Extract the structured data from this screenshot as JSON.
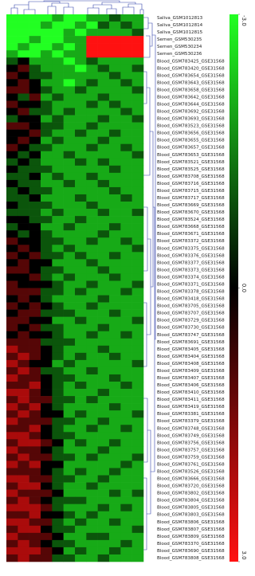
{
  "chart_data": {
    "type": "heatmap",
    "colors": [
      "#22ff22",
      "#000000",
      "#ff1111"
    ],
    "clim": [
      -3,
      3
    ],
    "cticks": [
      {
        "value": -3,
        "label": "-3.0"
      },
      {
        "value": 0,
        "label": "0.0"
      },
      {
        "value": 3,
        "label": "3.0"
      }
    ],
    "rows": [
      "Saliva_GSM1012813",
      "Saliva_GSM1012814",
      "Saliva_GSM1012815",
      "Semen_GSM530235",
      "Semen_GSM530234",
      "Semen_GSM530236",
      "Blood_GSM783425_GSE31568",
      "Blood_GSM783420_GSE31568",
      "Blood_GSM783654_GSE31568",
      "Blood_GSM783643_GSE31568",
      "Blood_GSM783658_GSE31568",
      "Blood_GSM783642_GSE31568",
      "Blood_GSM783644_GSE31568",
      "Blood_GSM783692_GSE31568",
      "Blood_GSM783693_GSE31568",
      "Blood_GSM783523_GSE31568",
      "Blood_GSM783656_GSE31568",
      "Blood_GSM783655_GSE31568",
      "Blood_GSM783657_GSE31568",
      "Blood_GSM783653_GSE31568",
      "Blood_GSM783521_GSE31568",
      "Blood_GSM783525_GSE31568",
      "Blood_GSM783708_GSE31568",
      "Blood_GSM783716_GSE31568",
      "Blood_GSM783715_GSE31568",
      "Blood_GSM783717_GSE31568",
      "Blood_GSM783669_GSE31568",
      "Blood_GSM783670_GSE31568",
      "Blood_GSM783524_GSE31568",
      "Blood_GSM783668_GSE31568",
      "Blood_GSM783671_GSE31568",
      "Blood_GSM783372_GSE31568",
      "Blood_GSM783375_GSE31568",
      "Blood_GSM783376_GSE31568",
      "Blood_GSM783377_GSE31568",
      "Blood_GSM783373_GSE31568",
      "Blood_GSM783374_GSE31568",
      "Blood_GSM783371_GSE31568",
      "Blood_GSM783378_GSE31568",
      "Blood_GSM783418_GSE31568",
      "Blood_GSM783705_GSE31568",
      "Blood_GSM783707_GSE31568",
      "Blood_GSM783729_GSE31568",
      "Blood_GSM783730_GSE31568",
      "Blood_GSM783747_GSE31568",
      "Blood_GSM783691_GSE31568",
      "Blood_GSM783405_GSE31568",
      "Blood_GSM783404_GSE31568",
      "Blood_GSM783408_GSE31568",
      "Blood_GSM783409_GSE31568",
      "Blood_GSM783407_GSE31568",
      "Blood_GSM783406_GSE31568",
      "Blood_GSM783410_GSE31568",
      "Blood_GSM783411_GSE31568",
      "Blood_GSM783419_GSE31568",
      "Blood_GSM783381_GSE31568",
      "Blood_GSM783379_GSE31568",
      "Blood_GSM783748_GSE31568",
      "Blood_GSM783749_GSE31568",
      "Blood_GSM783756_GSE31568",
      "Blood_GSM783757_GSE31568",
      "Blood_GSM783759_GSE31568",
      "Blood_GSM783761_GSE31568",
      "Blood_GSM783526_GSE31568",
      "Blood_GSM783666_GSE31568",
      "Blood_GSM783720_GSE31568",
      "Blood_GSM783802_GSE31568",
      "Blood_GSM783804_GSE31568",
      "Blood_GSM783805_GSE31568",
      "Blood_GSM783803_GSE31568",
      "Blood_GSM783806_GSE31568",
      "Blood_GSM783807_GSE31568",
      "Blood_GSM783809_GSE31568",
      "Blood_GSM783370_GSE31568",
      "Blood_GSM783690_GSE31568",
      "Blood_GSM783808_GSE31568"
    ],
    "values": [
      [
        -3,
        -3,
        -3,
        -3,
        -2,
        -3,
        -3,
        -2,
        -2,
        -1,
        -2,
        -2
      ],
      [
        -3,
        -3,
        -3,
        -2,
        -3,
        -3,
        -2,
        -3,
        -1,
        -2,
        -1,
        -2
      ],
      [
        -3,
        -3,
        -3,
        -3,
        -3,
        -2,
        -3,
        -2,
        -2,
        -2,
        -2,
        -1
      ],
      [
        -3,
        -3,
        -2,
        -3,
        -3,
        -2,
        -2,
        3,
        3,
        3,
        3,
        3
      ],
      [
        -3,
        -2,
        -3,
        -3,
        -2,
        -3,
        -2,
        3,
        3,
        3,
        3,
        3
      ],
      [
        -2,
        -3,
        -3,
        -2,
        -3,
        -2,
        -2,
        3,
        3,
        3,
        3,
        3
      ],
      [
        -1,
        0,
        -2,
        -2,
        -2,
        -3,
        -2,
        -1,
        -2,
        -2,
        -2,
        -2
      ],
      [
        0,
        1,
        -1,
        -2,
        -2,
        -2,
        -3,
        -2,
        -1,
        -2,
        -2,
        -1
      ],
      [
        1,
        0,
        -1,
        -1,
        -2,
        -2,
        -2,
        -2,
        -2,
        -1,
        -2,
        -2
      ],
      [
        0,
        1,
        0,
        -2,
        -2,
        -3,
        -2,
        -1,
        -2,
        -2,
        -1,
        -2
      ],
      [
        1,
        1,
        0,
        -1,
        -2,
        -2,
        -1,
        -2,
        -2,
        -2,
        -2,
        -1
      ],
      [
        0,
        -1,
        1,
        -2,
        -1,
        -2,
        -2,
        -2,
        -1,
        -2,
        -2,
        -2
      ],
      [
        1,
        0,
        0,
        -1,
        -2,
        -2,
        -2,
        -1,
        -2,
        -1,
        -2,
        -2
      ],
      [
        0,
        1,
        -1,
        -1,
        -2,
        -1,
        -2,
        -2,
        -2,
        -2,
        -1,
        -2
      ],
      [
        -1,
        0,
        0,
        -2,
        -1,
        -2,
        -2,
        -2,
        -1,
        -2,
        -2,
        -1
      ],
      [
        1,
        1,
        0,
        -1,
        -1,
        -2,
        -2,
        -1,
        -2,
        -2,
        -2,
        -2
      ],
      [
        0,
        0,
        1,
        -1,
        -2,
        -2,
        -1,
        -2,
        -2,
        -1,
        -2,
        -2
      ],
      [
        0,
        1,
        0,
        -2,
        -1,
        -2,
        -2,
        -2,
        -1,
        -2,
        -2,
        -2
      ],
      [
        1,
        0,
        -1,
        -1,
        -2,
        -2,
        -2,
        -1,
        -2,
        -2,
        -1,
        -2
      ],
      [
        0,
        -1,
        0,
        -2,
        -2,
        -1,
        -2,
        -2,
        -2,
        -2,
        -2,
        -1
      ],
      [
        -1,
        0,
        -1,
        -2,
        -2,
        -2,
        -1,
        -2,
        -1,
        -2,
        -2,
        -2
      ],
      [
        0,
        -1,
        -1,
        -1,
        -2,
        -2,
        -2,
        -2,
        -2,
        -1,
        -2,
        -2
      ],
      [
        -1,
        -1,
        0,
        -2,
        -1,
        -2,
        -2,
        -1,
        -2,
        -2,
        -2,
        -2
      ],
      [
        0,
        -1,
        -1,
        -2,
        -2,
        -1,
        -2,
        -2,
        -1,
        -2,
        -2,
        -2
      ],
      [
        -1,
        0,
        -1,
        -1,
        -2,
        -2,
        -2,
        -2,
        -2,
        -1,
        -2,
        -2
      ],
      [
        -1,
        -1,
        0,
        -2,
        -2,
        -2,
        -1,
        -2,
        -2,
        -2,
        -1,
        -2
      ],
      [
        0,
        -1,
        -1,
        -1,
        -2,
        -2,
        -2,
        -1,
        -2,
        -2,
        -2,
        -2
      ],
      [
        -1,
        -1,
        -1,
        -2,
        -1,
        -2,
        -2,
        -2,
        -1,
        -2,
        -2,
        -1
      ],
      [
        0,
        0,
        -1,
        -1,
        -2,
        -2,
        -1,
        -2,
        -2,
        -2,
        -2,
        -2
      ],
      [
        -1,
        0,
        0,
        -2,
        -2,
        -1,
        -2,
        -2,
        -2,
        -1,
        -2,
        -2
      ],
      [
        0,
        -1,
        0,
        -1,
        -2,
        -2,
        -2,
        -2,
        -1,
        -2,
        -2,
        -2
      ],
      [
        1,
        0,
        0,
        -1,
        -1,
        -2,
        -2,
        -1,
        -2,
        -2,
        -1,
        -2
      ],
      [
        0,
        1,
        0,
        -1,
        -2,
        -1,
        -2,
        -2,
        -2,
        -2,
        -2,
        -1
      ],
      [
        1,
        0,
        1,
        -1,
        -1,
        -2,
        -1,
        -2,
        -2,
        -1,
        -2,
        -2
      ],
      [
        0,
        1,
        0,
        0,
        -2,
        -2,
        -2,
        -1,
        -2,
        -2,
        -2,
        -2
      ],
      [
        1,
        1,
        0,
        -1,
        -1,
        -2,
        -2,
        -2,
        -1,
        -2,
        -2,
        -2
      ],
      [
        0,
        0,
        1,
        -1,
        -2,
        -1,
        -2,
        -2,
        -2,
        -1,
        -2,
        -2
      ],
      [
        1,
        0,
        0,
        0,
        -1,
        -2,
        -2,
        -1,
        -2,
        -2,
        -2,
        -1
      ],
      [
        1,
        1,
        1,
        -1,
        -1,
        -2,
        -1,
        -2,
        -2,
        -2,
        -1,
        -2
      ],
      [
        0,
        1,
        0,
        -1,
        -2,
        -2,
        -2,
        -2,
        -1,
        -2,
        -2,
        -2
      ],
      [
        1,
        0,
        1,
        0,
        -1,
        -2,
        -2,
        -1,
        -2,
        -2,
        -2,
        -2
      ],
      [
        0,
        1,
        1,
        -1,
        -1,
        -1,
        -2,
        -2,
        -2,
        -1,
        -2,
        -2
      ],
      [
        1,
        1,
        0,
        0,
        -2,
        -2,
        -1,
        -2,
        -2,
        -2,
        -2,
        -1
      ],
      [
        1,
        0,
        1,
        -1,
        -1,
        -2,
        -2,
        -2,
        -1,
        -2,
        -2,
        -2
      ],
      [
        0,
        1,
        0,
        0,
        -1,
        -2,
        -2,
        -1,
        -2,
        -2,
        -1,
        -2
      ],
      [
        1,
        1,
        1,
        -1,
        -1,
        -1,
        -2,
        -2,
        -2,
        -2,
        -2,
        -2
      ],
      [
        2,
        1,
        1,
        0,
        -1,
        -2,
        -2,
        -2,
        -1,
        -2,
        -2,
        -2
      ],
      [
        1,
        2,
        1,
        0,
        -1,
        -2,
        -1,
        -2,
        -2,
        -1,
        -2,
        -2
      ],
      [
        2,
        1,
        0,
        0,
        -2,
        -1,
        -2,
        -2,
        -2,
        -2,
        -2,
        -1
      ],
      [
        1,
        2,
        1,
        -1,
        -1,
        -2,
        -2,
        -1,
        -2,
        -2,
        -2,
        -2
      ],
      [
        2,
        1,
        1,
        0,
        -1,
        -1,
        -2,
        -2,
        -2,
        -1,
        -2,
        -2
      ],
      [
        1,
        1,
        2,
        0,
        -1,
        -2,
        -1,
        -2,
        -2,
        -2,
        -1,
        -2
      ],
      [
        2,
        2,
        1,
        0,
        -1,
        -2,
        -2,
        -2,
        -1,
        -2,
        -2,
        -2
      ],
      [
        1,
        2,
        1,
        1,
        -1,
        -1,
        -2,
        -1,
        -2,
        -2,
        -2,
        -2
      ],
      [
        2,
        1,
        2,
        0,
        -1,
        -2,
        -2,
        -2,
        -2,
        -1,
        -2,
        -2
      ],
      [
        1,
        2,
        1,
        0,
        0,
        -2,
        -1,
        -2,
        -2,
        -2,
        -2,
        -1
      ],
      [
        2,
        1,
        1,
        1,
        -1,
        -1,
        -2,
        -2,
        -1,
        -2,
        -2,
        -2
      ],
      [
        1,
        1,
        2,
        0,
        -1,
        -2,
        -2,
        -1,
        -2,
        -2,
        -1,
        -2
      ],
      [
        2,
        2,
        1,
        0,
        -1,
        -1,
        -2,
        -2,
        -2,
        -2,
        -2,
        -2
      ],
      [
        1,
        2,
        2,
        1,
        0,
        -2,
        -1,
        -2,
        -2,
        -1,
        -2,
        -2
      ],
      [
        2,
        1,
        1,
        0,
        -1,
        -2,
        -2,
        -2,
        -1,
        -2,
        -2,
        -2
      ],
      [
        1,
        2,
        1,
        1,
        -1,
        -1,
        -2,
        -1,
        -2,
        -2,
        -2,
        -1
      ],
      [
        2,
        1,
        2,
        0,
        0,
        -2,
        -2,
        -2,
        -2,
        -2,
        -1,
        -2
      ],
      [
        1,
        1,
        1,
        0,
        -1,
        -2,
        -1,
        -2,
        -2,
        -1,
        -2,
        -2
      ],
      [
        2,
        2,
        1,
        1,
        -1,
        -1,
        -2,
        -2,
        -1,
        -2,
        -2,
        -2
      ],
      [
        1,
        2,
        2,
        0,
        -1,
        -2,
        -2,
        -1,
        -2,
        -2,
        -2,
        -2
      ],
      [
        2,
        1,
        1,
        1,
        0,
        -2,
        -2,
        -2,
        -2,
        -1,
        -2,
        -1
      ],
      [
        1,
        2,
        1,
        0,
        -1,
        -1,
        -1,
        -2,
        -2,
        -2,
        -2,
        -2
      ],
      [
        2,
        2,
        2,
        1,
        -1,
        -2,
        -2,
        -2,
        -1,
        -2,
        -1,
        -2
      ],
      [
        1,
        1,
        2,
        0,
        0,
        -1,
        -2,
        -1,
        -2,
        -2,
        -2,
        -2
      ],
      [
        2,
        2,
        1,
        1,
        -1,
        -2,
        -1,
        -2,
        -2,
        -1,
        -2,
        -2
      ],
      [
        1,
        2,
        2,
        0,
        -1,
        -1,
        -2,
        -2,
        -2,
        -2,
        -2,
        -1
      ],
      [
        2,
        1,
        1,
        1,
        0,
        -2,
        -2,
        -1,
        -1,
        -2,
        -2,
        -2
      ],
      [
        1,
        2,
        1,
        0,
        -1,
        -1,
        -2,
        -2,
        -2,
        -2,
        -1,
        -2
      ],
      [
        2,
        2,
        2,
        1,
        0,
        -2,
        -1,
        -2,
        -2,
        -1,
        -2,
        -2
      ],
      [
        1,
        2,
        1,
        1,
        -1,
        -1,
        -2,
        -2,
        -1,
        -2,
        -2,
        -2
      ]
    ]
  }
}
